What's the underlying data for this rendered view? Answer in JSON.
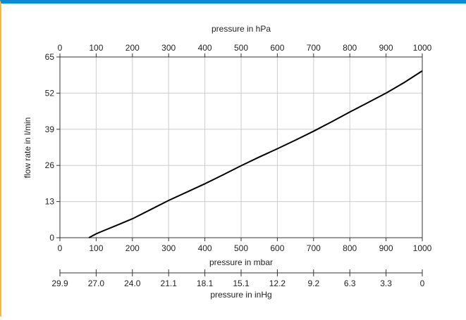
{
  "colors": {
    "top_border": "#0d8bd1",
    "left_border": "#f2b84b",
    "grid": "#cccccc",
    "axis": "#333333",
    "curve": "#000000",
    "text": "#222222"
  },
  "chart_data": {
    "type": "line",
    "title": "",
    "top_axis": {
      "label": "pressure in hPa",
      "ticks": [
        "0",
        "100",
        "200",
        "300",
        "400",
        "500",
        "600",
        "700",
        "800",
        "900",
        "1000"
      ]
    },
    "x_axis": {
      "label": "pressure in mbar",
      "range": [
        0,
        1000
      ],
      "ticks": [
        "0",
        "100",
        "200",
        "300",
        "400",
        "500",
        "600",
        "700",
        "800",
        "900",
        "1000"
      ]
    },
    "bottom_axis": {
      "label": "pressure in inHg",
      "ticks": [
        "29.9",
        "27.0",
        "24.0",
        "21.1",
        "18.1",
        "15.1",
        "12.2",
        "9.2",
        "6.3",
        "3.3",
        "0"
      ]
    },
    "y_axis": {
      "label": "flow rate in l/min",
      "range": [
        0,
        65
      ],
      "ticks": [
        "0",
        "13",
        "26",
        "39",
        "52",
        "65"
      ]
    },
    "grid": true,
    "series": [
      {
        "x": [
          80,
          100,
          120,
          150,
          200,
          250,
          300,
          350,
          400,
          450,
          500,
          550,
          600,
          650,
          700,
          750,
          800,
          850,
          900,
          950,
          1000
        ],
        "y": [
          0,
          1.4,
          2.5,
          4.1,
          6.8,
          10.1,
          13.4,
          16.4,
          19.4,
          22.6,
          25.9,
          29.0,
          32.0,
          35.1,
          38.3,
          41.7,
          45.2,
          48.6,
          52.0,
          55.8,
          60.0
        ]
      }
    ]
  }
}
